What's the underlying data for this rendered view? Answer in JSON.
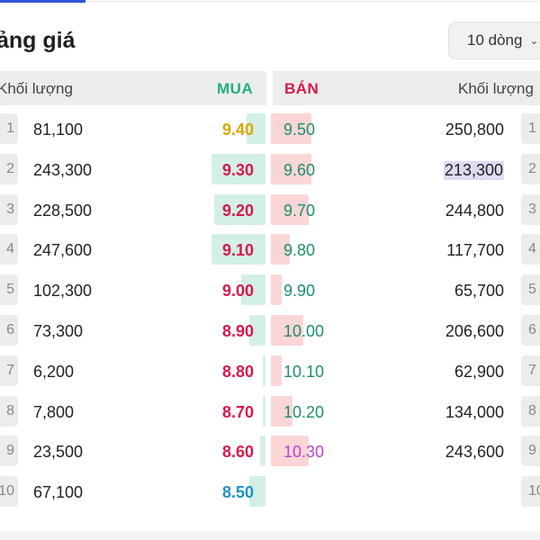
{
  "page": {
    "title": "ảng giá",
    "rows_select": "10 dòng"
  },
  "headers": {
    "volume_left": "Khối lượng",
    "buy": "MUA",
    "sell": "BÁN",
    "volume_right": "Khối lượng"
  },
  "colors": {
    "buy_header": "#1fae87",
    "sell_header": "#d6184b",
    "buy_bar": "#d3f0e6",
    "sell_bar": "#fbd6d6",
    "yellow": "#d6a800",
    "red": "#d6184b",
    "green": "#1a8f6c",
    "blue": "#1e90c8",
    "purple": "#c040d0"
  },
  "orders": [
    {
      "index": "1",
      "buy_volume": "81,100",
      "buy_price": "9.40",
      "buy_color": "yellow",
      "buy_fill": 0.07,
      "sell_price": "9.50",
      "sell_color": "green",
      "sell_fill": 0.15,
      "sell_volume": "250,800",
      "sell_highlight": false
    },
    {
      "index": "2",
      "buy_volume": "243,300",
      "buy_price": "9.30",
      "buy_color": "red",
      "buy_fill": 0.2,
      "sell_price": "9.60",
      "sell_color": "green",
      "sell_fill": 0.15,
      "sell_volume": "213,300",
      "sell_highlight": true
    },
    {
      "index": "3",
      "buy_volume": "228,500",
      "buy_price": "9.20",
      "buy_color": "red",
      "buy_fill": 0.19,
      "sell_price": "9.70",
      "sell_color": "green",
      "sell_fill": 0.14,
      "sell_volume": "244,800",
      "sell_highlight": false
    },
    {
      "index": "4",
      "buy_volume": "247,600",
      "buy_price": "9.10",
      "buy_color": "red",
      "buy_fill": 0.2,
      "sell_price": "9.80",
      "sell_color": "green",
      "sell_fill": 0.07,
      "sell_volume": "117,700",
      "sell_highlight": false
    },
    {
      "index": "5",
      "buy_volume": "102,300",
      "buy_price": "9.00",
      "buy_color": "red",
      "buy_fill": 0.09,
      "sell_price": "9.90",
      "sell_color": "green",
      "sell_fill": 0.04,
      "sell_volume": "65,700",
      "sell_highlight": false
    },
    {
      "index": "6",
      "buy_volume": "73,300",
      "buy_price": "8.90",
      "buy_color": "red",
      "buy_fill": 0.06,
      "sell_price": "10.00",
      "sell_color": "green",
      "sell_fill": 0.12,
      "sell_volume": "206,600",
      "sell_highlight": false
    },
    {
      "index": "7",
      "buy_volume": "6,200",
      "buy_price": "8.80",
      "buy_color": "red",
      "buy_fill": 0.01,
      "sell_price": "10.10",
      "sell_color": "green",
      "sell_fill": 0.04,
      "sell_volume": "62,900",
      "sell_highlight": false
    },
    {
      "index": "8",
      "buy_volume": "7,800",
      "buy_price": "8.70",
      "buy_color": "red",
      "buy_fill": 0.01,
      "sell_price": "10.20",
      "sell_color": "green",
      "sell_fill": 0.08,
      "sell_volume": "134,000",
      "sell_highlight": false
    },
    {
      "index": "9",
      "buy_volume": "23,500",
      "buy_price": "8.60",
      "buy_color": "red",
      "buy_fill": 0.02,
      "sell_price": "10.30",
      "sell_color": "purple",
      "sell_fill": 0.14,
      "sell_volume": "243,600",
      "sell_highlight": false
    },
    {
      "index": "10",
      "buy_volume": "67,100",
      "buy_price": "8.50",
      "buy_color": "blue",
      "buy_fill": 0.06,
      "sell_price": "",
      "sell_color": "green",
      "sell_fill": 0,
      "sell_volume": "",
      "sell_highlight": false
    }
  ]
}
